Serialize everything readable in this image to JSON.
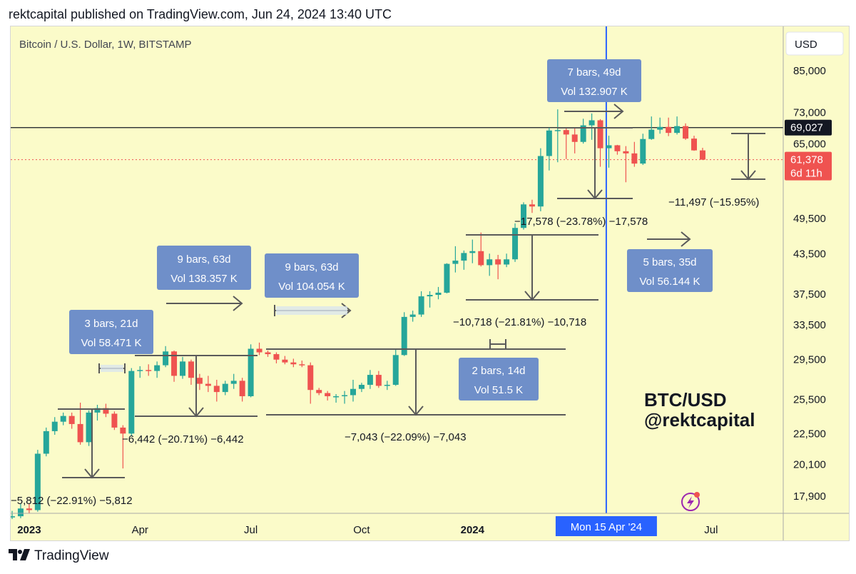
{
  "header": {
    "publish_text": "rektcapital published on TradingView.com, Jun 24, 2024 13:40 UTC"
  },
  "footer": {
    "brand_text": "TradingView",
    "logo_icon": "tradingview-logo-icon"
  },
  "colors": {
    "up": "#26a69a",
    "down": "#ef5350",
    "background": "#fbfbc9",
    "crosshair": "#2962ff",
    "label_box": "#6f8fc9",
    "price_line": "#131722",
    "current_price": "#ef5350"
  },
  "chart_data": {
    "type": "candlestick",
    "title": "Bitcoin / U.S. Dollar, 1W, BITSTAMP",
    "currency_button": "USD",
    "y_scale": "log",
    "ylim": [
      16800,
      100000
    ],
    "y_ticks": [
      "85,000",
      "73,000",
      "65,000",
      "49,500",
      "43,500",
      "37,500",
      "33,500",
      "29,500",
      "25,500",
      "22,500",
      "20,100",
      "17,900"
    ],
    "y_tick_values": [
      85000,
      73000,
      65000,
      49500,
      43500,
      37500,
      33500,
      29500,
      25500,
      22500,
      20100,
      17900
    ],
    "x_ticks": [
      "2023",
      "Apr",
      "Jul",
      "Oct",
      "2024",
      "Jul"
    ],
    "x_tick_weeks": [
      2,
      15,
      28,
      41,
      54,
      82
    ],
    "horizontal_line": {
      "price": 69027,
      "label": "69,027"
    },
    "current_price": {
      "price": 61378,
      "label": "61,378",
      "countdown": "6d 11h"
    },
    "crosshair": {
      "week": 69.7,
      "date_label": "Mon 15 Apr '24"
    },
    "watermark": {
      "line1": "BTC/USD",
      "line2": "@rektcapital"
    },
    "candles": [
      [
        16550,
        16950,
        16450,
        16620
      ],
      [
        16620,
        17400,
        16500,
        17100
      ],
      [
        17100,
        17400,
        16800,
        17000
      ],
      [
        17000,
        21200,
        16900,
        20900
      ],
      [
        20900,
        23000,
        20700,
        22700
      ],
      [
        22700,
        23900,
        22400,
        23500
      ],
      [
        23500,
        24300,
        23200,
        24000
      ],
      [
        24000,
        24300,
        22900,
        23300
      ],
      [
        23300,
        25200,
        21600,
        21800
      ],
      [
        21800,
        24500,
        21500,
        24300
      ],
      [
        24300,
        25000,
        23600,
        24700
      ],
      [
        24700,
        25100,
        23900,
        24200
      ],
      [
        24200,
        24400,
        22800,
        23000
      ],
      [
        23000,
        23200,
        19800,
        22500
      ],
      [
        22500,
        28600,
        22300,
        28300
      ],
      [
        28300,
        28800,
        27600,
        28400
      ],
      [
        28400,
        29000,
        27800,
        28300
      ],
      [
        28300,
        29300,
        27600,
        28900
      ],
      [
        28900,
        31000,
        28700,
        30400
      ],
      [
        30400,
        30500,
        27200,
        27800
      ],
      [
        27800,
        29800,
        27500,
        29300
      ],
      [
        29300,
        29500,
        26900,
        27600
      ],
      [
        27600,
        28000,
        26400,
        27000
      ],
      [
        27000,
        27800,
        26200,
        26800
      ],
      [
        26800,
        27400,
        25300,
        26200
      ],
      [
        26200,
        27300,
        25900,
        27000
      ],
      [
        27000,
        28000,
        26500,
        27300
      ],
      [
        27300,
        27600,
        25300,
        25800
      ],
      [
        25800,
        31200,
        25700,
        30700
      ],
      [
        30700,
        31400,
        30000,
        30300
      ],
      [
        30300,
        30500,
        29800,
        30100
      ],
      [
        30100,
        30300,
        29100,
        29500
      ],
      [
        29500,
        29900,
        29000,
        29200
      ],
      [
        29200,
        29600,
        28700,
        29000
      ],
      [
        29000,
        29400,
        28700,
        28900
      ],
      [
        28900,
        29200,
        25100,
        26400
      ],
      [
        26400,
        26600,
        25900,
        26100
      ],
      [
        26100,
        26300,
        25400,
        25800
      ],
      [
        25800,
        26000,
        25200,
        25800
      ],
      [
        25800,
        26300,
        25100,
        25900
      ],
      [
        25900,
        27400,
        25300,
        26500
      ],
      [
        26500,
        27100,
        26200,
        26900
      ],
      [
        26900,
        28400,
        26500,
        27900
      ],
      [
        27900,
        28300,
        26600,
        26800
      ],
      [
        26800,
        27300,
        26400,
        26900
      ],
      [
        26900,
        30600,
        26800,
        30000
      ],
      [
        30000,
        35100,
        29900,
        34500
      ],
      [
        34500,
        35300,
        33900,
        34800
      ],
      [
        34800,
        37900,
        34500,
        37200
      ],
      [
        37200,
        37900,
        35700,
        37400
      ],
      [
        37400,
        38500,
        36800,
        37700
      ],
      [
        37700,
        42000,
        37600,
        41900
      ],
      [
        41900,
        44700,
        40600,
        42400
      ],
      [
        42400,
        44000,
        41000,
        43600
      ],
      [
        43600,
        45800,
        42000,
        43900
      ],
      [
        43900,
        47000,
        41500,
        41700
      ],
      [
        41700,
        43500,
        40100,
        42600
      ],
      [
        42600,
        43300,
        39600,
        41800
      ],
      [
        41800,
        43500,
        41400,
        42600
      ],
      [
        42600,
        48600,
        42200,
        47800
      ],
      [
        47800,
        52500,
        47500,
        52100
      ],
      [
        52100,
        53000,
        50500,
        51700
      ],
      [
        51700,
        64000,
        50800,
        62200
      ],
      [
        62200,
        69000,
        59000,
        68300
      ],
      [
        68300,
        73800,
        60800,
        68400
      ],
      [
        68400,
        68900,
        61500,
        67300
      ],
      [
        67300,
        69000,
        62800,
        65500
      ],
      [
        65500,
        71300,
        65100,
        69600
      ],
      [
        69600,
        72700,
        66000,
        70900
      ],
      [
        70900,
        71200,
        59800,
        64000
      ],
      [
        64000,
        67000,
        59600,
        64700
      ],
      [
        64700,
        64800,
        62500,
        63300
      ],
      [
        63300,
        64500,
        56500,
        62800
      ],
      [
        62800,
        65500,
        59800,
        60500
      ],
      [
        60500,
        67500,
        60200,
        66200
      ],
      [
        66200,
        71900,
        66000,
        68500
      ],
      [
        68500,
        71600,
        67500,
        69200
      ],
      [
        69200,
        71600,
        66900,
        67700
      ],
      [
        67700,
        71900,
        67300,
        69400
      ],
      [
        69400,
        70100,
        66000,
        66300
      ],
      [
        66300,
        67000,
        63400,
        63500
      ],
      [
        63500,
        64100,
        61300,
        61378
      ]
    ],
    "annotations": {
      "drops": [
        {
          "label": "−5,812 (−22.91%) −5,812"
        },
        {
          "label": "−6,442 (−20.71%) −6,442"
        },
        {
          "label": "−7,043 (−22.09%) −7,043"
        },
        {
          "label": "−10,718 (−21.81%) −10,718"
        },
        {
          "label": "−17,578 (−23.78%) −17,578"
        },
        {
          "label": "−11,497 (−15.95%)"
        }
      ],
      "ranges": [
        {
          "line1": "3 bars, 21d",
          "line2": "Vol 58.471 K"
        },
        {
          "line1": "9 bars, 63d",
          "line2": "Vol 138.357 K"
        },
        {
          "line1": "9 bars, 63d",
          "line2": "Vol 104.054 K"
        },
        {
          "line1": "2 bars, 14d",
          "line2": "Vol 51.5 K"
        },
        {
          "line1": "7 bars, 49d",
          "line2": "Vol 132.907 K"
        },
        {
          "line1": "5 bars, 35d",
          "line2": "Vol 56.144 K"
        }
      ]
    }
  }
}
